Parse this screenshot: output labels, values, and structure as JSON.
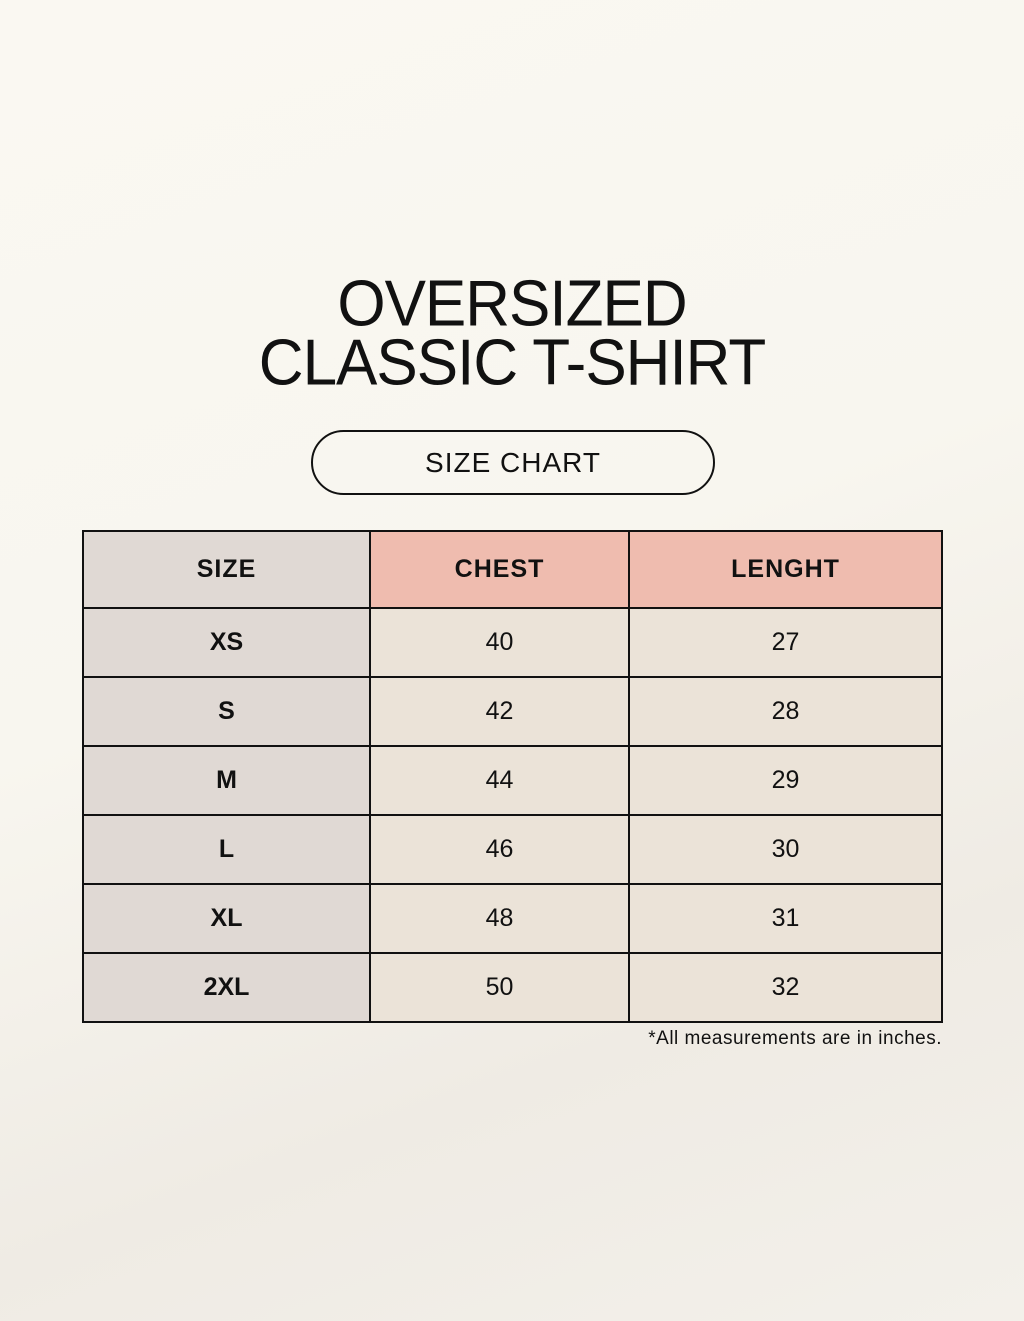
{
  "title": {
    "line1": "OVERSIZED",
    "line2": "CLASSIC T-SHIRT"
  },
  "badge": "SIZE CHART",
  "table": {
    "headers": [
      "SIZE",
      "CHEST",
      "LENGHT"
    ],
    "rows": [
      [
        "XS",
        "40",
        "27"
      ],
      [
        "S",
        "42",
        "28"
      ],
      [
        "M",
        "44",
        "29"
      ],
      [
        "L",
        "46",
        "30"
      ],
      [
        "XL",
        "48",
        "31"
      ],
      [
        "2XL",
        "50",
        "32"
      ]
    ]
  },
  "note": "*All measurements are in inches.",
  "colors": {
    "size_column": "#e0d9d4",
    "header_accent": "#efbcaf",
    "cell": "#ebe3d8",
    "background": "#f9f7f1"
  }
}
